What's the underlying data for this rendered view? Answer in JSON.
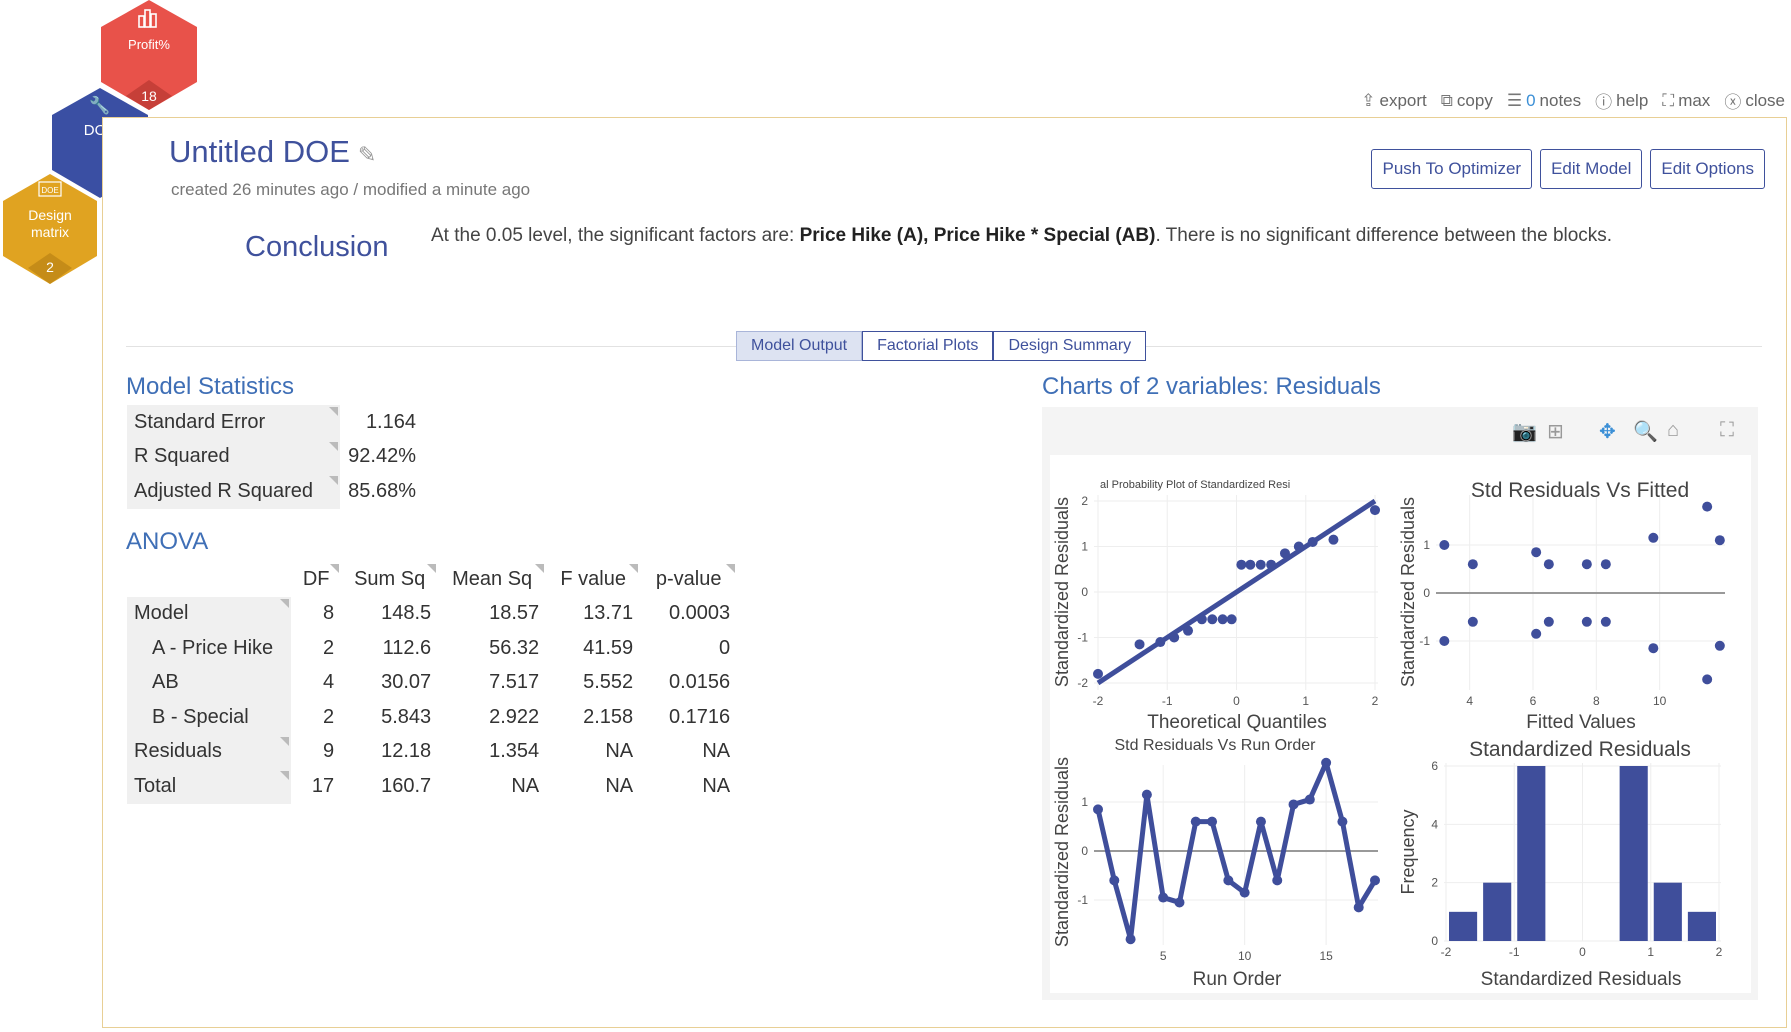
{
  "nav": {
    "hexes": [
      {
        "label": "Profit%",
        "count": "18",
        "icon": "bar-chart-icon",
        "color": "#e8524a"
      },
      {
        "label": "DOE",
        "icon": "wrench-icon",
        "color": "#3a4fa3"
      },
      {
        "label_line1": "Design",
        "label_line2": "matrix",
        "count": "2",
        "icon": "doe-badge-icon",
        "icon_text": "DOE",
        "color": "#e0a321"
      }
    ]
  },
  "toolbar": {
    "export": "export",
    "copy": "copy",
    "notes_count": "0",
    "notes": "notes",
    "help": "help",
    "max": "max",
    "close": "close"
  },
  "header": {
    "title": "Untitled DOE",
    "meta": "created 26 minutes ago / modified a minute ago",
    "buttons": [
      "Push To Optimizer",
      "Edit Model",
      "Edit Options"
    ]
  },
  "conclusion": {
    "heading": "Conclusion",
    "pre": "At the 0.05 level, the significant factors are: ",
    "bold": "Price Hike (A), Price Hike * Special (AB)",
    "post": ". There is no significant difference between the blocks."
  },
  "tabs": [
    {
      "label": "Model Output",
      "active": true
    },
    {
      "label": "Factorial Plots"
    },
    {
      "label": "Design Summary"
    }
  ],
  "model_stats": {
    "title": "Model Statistics",
    "rows": [
      {
        "label": "Standard Error",
        "value": "1.164"
      },
      {
        "label": "R Squared",
        "value": "92.42%"
      },
      {
        "label": "Adjusted R Squared",
        "value": "85.68%"
      }
    ]
  },
  "anova": {
    "title": "ANOVA",
    "columns": [
      "DF",
      "Sum Sq",
      "Mean Sq",
      "F value",
      "p-value"
    ],
    "rows": [
      {
        "label": "Model",
        "indent": false,
        "values": [
          "8",
          "148.5",
          "18.57",
          "13.71",
          "0.0003"
        ]
      },
      {
        "label": "A - Price Hike",
        "indent": true,
        "values": [
          "2",
          "112.6",
          "56.32",
          "41.59",
          "0"
        ]
      },
      {
        "label": "AB",
        "indent": true,
        "values": [
          "4",
          "30.07",
          "7.517",
          "5.552",
          "0.0156"
        ]
      },
      {
        "label": "B - Special",
        "indent": true,
        "values": [
          "2",
          "5.843",
          "2.922",
          "2.158",
          "0.1716"
        ]
      },
      {
        "label": "Residuals",
        "indent": false,
        "values": [
          "9",
          "12.18",
          "1.354",
          "NA",
          "NA"
        ]
      },
      {
        "label": "Total",
        "indent": false,
        "values": [
          "17",
          "160.7",
          "NA",
          "NA",
          "NA"
        ]
      }
    ]
  },
  "charts_title": "Charts of 2 variables: Residuals",
  "chart_toolbar": [
    "camera-icon",
    "add-box-icon",
    "pan-icon",
    "zoom-icon",
    "home-icon",
    "fullscreen-icon"
  ],
  "chart_data": [
    {
      "type": "scatter",
      "title": "al Probability Plot of Standardized Resi",
      "xlabel": "Theoretical Quantiles",
      "ylabel": "Standardized Residuals",
      "xlim": [
        -2,
        2
      ],
      "ylim": [
        -2,
        2
      ],
      "xticks": [
        "-2",
        "-1",
        "0",
        "1",
        "2"
      ],
      "yticks": [
        "-2",
        "-1",
        "0",
        "1",
        "2"
      ],
      "color": "#3f4e9b",
      "x": [
        -2,
        -1.4,
        -1.1,
        -0.9,
        -0.7,
        -0.5,
        -0.35,
        -0.2,
        -0.07,
        0.07,
        0.2,
        0.35,
        0.5,
        0.7,
        0.9,
        1.1,
        1.4,
        2
      ],
      "y": [
        -1.8,
        -1.15,
        -1.1,
        -1.0,
        -0.85,
        -0.6,
        -0.6,
        -0.6,
        -0.6,
        0.6,
        0.6,
        0.6,
        0.6,
        0.85,
        1.0,
        1.1,
        1.15,
        1.8
      ],
      "fit_line": [
        [
          -2,
          -2
        ],
        [
          2,
          2
        ]
      ]
    },
    {
      "type": "scatter",
      "title": "Std Residuals Vs Fitted",
      "xlabel": "Fitted Values",
      "ylabel": "Standardized Residuals",
      "xlim": [
        3,
        12
      ],
      "ylim": [
        -2,
        2
      ],
      "xticks": [
        "4",
        "6",
        "8",
        "10"
      ],
      "yticks": [
        "-1",
        "0",
        "1"
      ],
      "color": "#3f4e9b",
      "x": [
        3.2,
        3.2,
        4.1,
        4.1,
        6.1,
        6.1,
        6.5,
        6.5,
        7.7,
        7.7,
        8.3,
        8.3,
        9.8,
        9.8,
        11.5,
        11.5,
        11.9,
        11.9
      ],
      "y": [
        1,
        -1,
        0.6,
        -0.6,
        0.85,
        -0.85,
        0.6,
        -0.6,
        0.6,
        -0.6,
        0.6,
        -0.6,
        1.15,
        -1.15,
        1.8,
        -1.8,
        1.1,
        -1.1
      ]
    },
    {
      "type": "line",
      "title": "Std Residuals Vs Run Order",
      "xlabel": "Run Order",
      "ylabel": "Standardized Residuals",
      "xticks": [
        "5",
        "10",
        "15"
      ],
      "yticks": [
        "-1",
        "0",
        "1"
      ],
      "color": "#3f4e9b",
      "x": [
        1,
        2,
        3,
        4,
        5,
        6,
        7,
        8,
        9,
        10,
        11,
        12,
        13,
        14,
        15,
        16,
        17,
        18
      ],
      "y": [
        0.85,
        -0.6,
        -1.8,
        1.15,
        -0.95,
        -1.05,
        0.6,
        0.6,
        -0.6,
        -0.85,
        0.6,
        -0.6,
        0.95,
        1.05,
        1.8,
        0.6,
        -1.15,
        -0.6
      ]
    },
    {
      "type": "bar",
      "title": "Standardized Residuals",
      "xlabel": "Standardized Residuals",
      "ylabel": "Frequency",
      "xlim": [
        -2,
        2
      ],
      "ylim": [
        0,
        6
      ],
      "xticks": [
        "-2",
        "-1",
        "0",
        "1",
        "2"
      ],
      "yticks": [
        "0",
        "2",
        "4",
        "6"
      ],
      "color": "#3f4e9b",
      "bins": [
        [
          -2,
          -1.5
        ],
        [
          -1.5,
          -1
        ],
        [
          -1,
          -0.5
        ],
        [
          0.5,
          1
        ],
        [
          1,
          1.5
        ],
        [
          1.5,
          2
        ]
      ],
      "values": [
        1,
        2,
        6,
        6,
        2,
        1
      ]
    }
  ]
}
